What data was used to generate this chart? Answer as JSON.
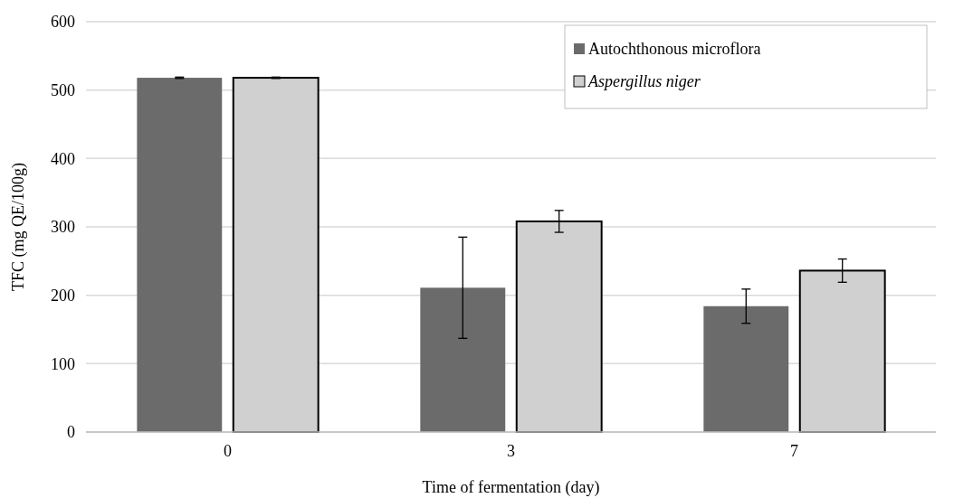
{
  "chart_data": {
    "type": "bar",
    "xlabel": "Time of fermentation (day)",
    "ylabel": "TFC (mg QE/100g)",
    "categories": [
      "0",
      "3",
      "7"
    ],
    "series": [
      {
        "name": "Autochthonous microflora",
        "color": "#6b6b6b",
        "values": [
          518,
          211,
          184
        ],
        "errors": [
          1,
          74,
          25
        ]
      },
      {
        "name": "Aspergillus niger",
        "color": "#d0d0d0",
        "values": [
          518,
          308,
          236
        ],
        "errors": [
          1,
          16,
          17
        ]
      }
    ],
    "ylim": [
      0,
      600
    ],
    "yticks": [
      0,
      100,
      200,
      300,
      400,
      500,
      600
    ],
    "grid": "y",
    "legend": "top right"
  }
}
